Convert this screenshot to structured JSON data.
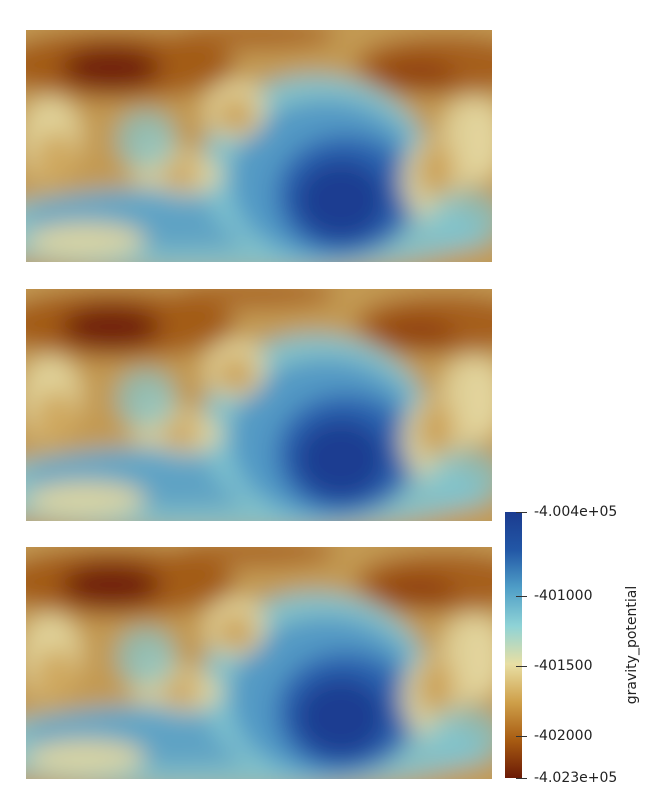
{
  "chart_data": {
    "type": "heatmap",
    "variable": "gravity_potential",
    "panels": 3,
    "colorbar": {
      "title": "gravity_potential",
      "min": -402300,
      "max": -400400,
      "tick_values": [
        -400400,
        -401000,
        -401500,
        -402000,
        -402300
      ],
      "tick_labels": [
        "-4.004e+05",
        "-401000",
        "-401500",
        "-402000",
        "-4.023e+05"
      ],
      "colors": [
        "#6b1a06",
        "#a85c12",
        "#cfa04a",
        "#e8dfa4",
        "#8fd3d6",
        "#4f9ec7",
        "#2257a6",
        "#1b3b8f"
      ]
    }
  }
}
